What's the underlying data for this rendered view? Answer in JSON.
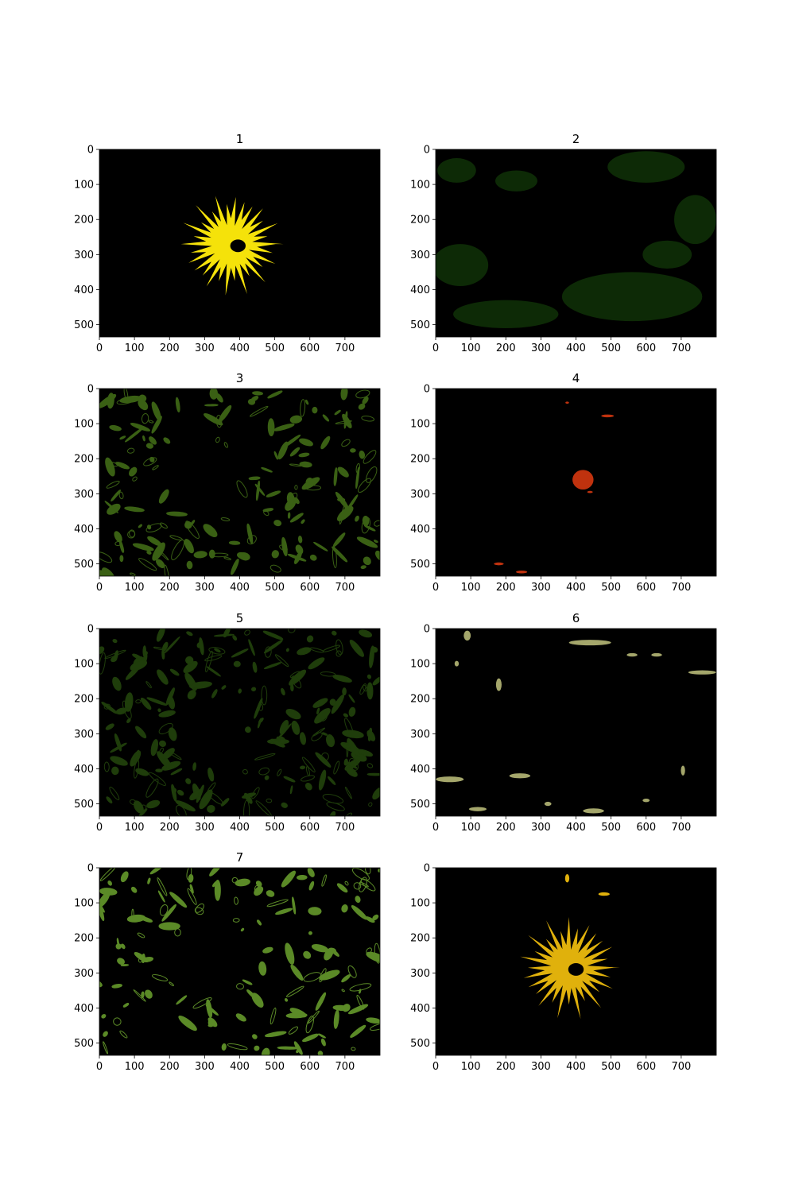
{
  "chart_data": [
    {
      "type": "heatmap",
      "title": "1",
      "content": "segmentation-mask",
      "mask_color": "#f5e20a",
      "background_color": "#000000",
      "xlim": [
        0,
        800
      ],
      "ylim": [
        535,
        0
      ],
      "xticks": [
        0,
        100,
        200,
        300,
        400,
        500,
        600,
        700
      ],
      "yticks": [
        0,
        100,
        200,
        300,
        400,
        500
      ],
      "regions": [
        {
          "shape": "flower",
          "cx": 375,
          "cy": 270,
          "r_outer": 150,
          "r_inner": 75,
          "petals": 30
        }
      ]
    },
    {
      "type": "heatmap",
      "title": "2",
      "content": "segmentation-mask",
      "mask_color": "#0d2a06",
      "background_color": "#000000",
      "xlim": [
        0,
        800
      ],
      "ylim": [
        535,
        0
      ],
      "xticks": [
        0,
        100,
        200,
        300,
        400,
        500,
        600,
        700
      ],
      "yticks": [
        0,
        100,
        200,
        300,
        400,
        500
      ],
      "regions": [
        {
          "shape": "blob",
          "cx": 60,
          "cy": 60,
          "rx": 55,
          "ry": 35
        },
        {
          "shape": "blob",
          "cx": 230,
          "cy": 90,
          "rx": 60,
          "ry": 30
        },
        {
          "shape": "blob",
          "cx": 600,
          "cy": 50,
          "rx": 110,
          "ry": 45
        },
        {
          "shape": "blob",
          "cx": 740,
          "cy": 200,
          "rx": 60,
          "ry": 70
        },
        {
          "shape": "blob",
          "cx": 70,
          "cy": 330,
          "rx": 80,
          "ry": 60
        },
        {
          "shape": "blob",
          "cx": 560,
          "cy": 420,
          "rx": 200,
          "ry": 70
        },
        {
          "shape": "blob",
          "cx": 200,
          "cy": 470,
          "rx": 150,
          "ry": 40
        },
        {
          "shape": "blob",
          "cx": 660,
          "cy": 300,
          "rx": 70,
          "ry": 40
        }
      ]
    },
    {
      "type": "heatmap",
      "title": "3",
      "content": "segmentation-mask",
      "mask_color": "#3a6014",
      "background_color": "#000000",
      "xlim": [
        0,
        800
      ],
      "ylim": [
        535,
        0
      ],
      "xticks": [
        0,
        100,
        200,
        300,
        400,
        500,
        600,
        700
      ],
      "yticks": [
        0,
        100,
        200,
        300,
        400,
        500
      ],
      "regions": [
        {
          "shape": "scatter",
          "seed": 3,
          "count": 180,
          "exclude_cx": 300,
          "exclude_cy": 260,
          "exclude_r": 110
        }
      ]
    },
    {
      "type": "heatmap",
      "title": "4",
      "content": "segmentation-mask",
      "mask_color": "#c0320e",
      "background_color": "#000000",
      "xlim": [
        0,
        800
      ],
      "ylim": [
        535,
        0
      ],
      "xticks": [
        0,
        100,
        200,
        300,
        400,
        500,
        600,
        700
      ],
      "yticks": [
        0,
        100,
        200,
        300,
        400,
        500
      ],
      "regions": [
        {
          "shape": "blob",
          "cx": 420,
          "cy": 260,
          "rx": 30,
          "ry": 28
        },
        {
          "shape": "blob",
          "cx": 490,
          "cy": 78,
          "rx": 18,
          "ry": 4
        },
        {
          "shape": "blob",
          "cx": 375,
          "cy": 40,
          "rx": 5,
          "ry": 3
        },
        {
          "shape": "blob",
          "cx": 180,
          "cy": 500,
          "rx": 14,
          "ry": 4
        },
        {
          "shape": "blob",
          "cx": 245,
          "cy": 523,
          "rx": 16,
          "ry": 4
        },
        {
          "shape": "blob",
          "cx": 440,
          "cy": 295,
          "rx": 8,
          "ry": 3
        }
      ]
    },
    {
      "type": "heatmap",
      "title": "5",
      "content": "segmentation-mask",
      "mask_color": "#1f3d0b",
      "background_color": "#000000",
      "xlim": [
        0,
        800
      ],
      "ylim": [
        535,
        0
      ],
      "xticks": [
        0,
        100,
        200,
        300,
        400,
        500,
        600,
        700
      ],
      "yticks": [
        0,
        100,
        200,
        300,
        400,
        500
      ],
      "regions": [
        {
          "shape": "scatter",
          "seed": 5,
          "count": 230,
          "exclude_cx": 320,
          "exclude_cy": 290,
          "exclude_r": 100
        }
      ]
    },
    {
      "type": "heatmap",
      "title": "6",
      "content": "segmentation-mask",
      "mask_color": "#a4a66b",
      "background_color": "#000000",
      "xlim": [
        0,
        800
      ],
      "ylim": [
        535,
        0
      ],
      "xticks": [
        0,
        100,
        200,
        300,
        400,
        500,
        600,
        700
      ],
      "yticks": [
        0,
        100,
        200,
        300,
        400,
        500
      ],
      "regions": [
        {
          "shape": "blob",
          "cx": 90,
          "cy": 20,
          "rx": 10,
          "ry": 14
        },
        {
          "shape": "blob",
          "cx": 180,
          "cy": 160,
          "rx": 8,
          "ry": 18
        },
        {
          "shape": "blob",
          "cx": 60,
          "cy": 100,
          "rx": 6,
          "ry": 8
        },
        {
          "shape": "blob",
          "cx": 440,
          "cy": 40,
          "rx": 60,
          "ry": 8
        },
        {
          "shape": "blob",
          "cx": 560,
          "cy": 75,
          "rx": 15,
          "ry": 5
        },
        {
          "shape": "blob",
          "cx": 630,
          "cy": 75,
          "rx": 15,
          "ry": 5
        },
        {
          "shape": "blob",
          "cx": 760,
          "cy": 125,
          "rx": 40,
          "ry": 6
        },
        {
          "shape": "blob",
          "cx": 40,
          "cy": 430,
          "rx": 40,
          "ry": 8
        },
        {
          "shape": "blob",
          "cx": 240,
          "cy": 420,
          "rx": 30,
          "ry": 7
        },
        {
          "shape": "blob",
          "cx": 450,
          "cy": 520,
          "rx": 30,
          "ry": 7
        },
        {
          "shape": "blob",
          "cx": 120,
          "cy": 515,
          "rx": 25,
          "ry": 6
        },
        {
          "shape": "blob",
          "cx": 705,
          "cy": 405,
          "rx": 6,
          "ry": 14
        },
        {
          "shape": "blob",
          "cx": 320,
          "cy": 500,
          "rx": 10,
          "ry": 6
        },
        {
          "shape": "blob",
          "cx": 600,
          "cy": 490,
          "rx": 10,
          "ry": 5
        }
      ]
    },
    {
      "type": "heatmap",
      "title": "7",
      "content": "segmentation-mask",
      "mask_color": "#5b8a27",
      "background_color": "#000000",
      "xlim": [
        0,
        800
      ],
      "ylim": [
        535,
        0
      ],
      "xticks": [
        0,
        100,
        200,
        300,
        400,
        500,
        600,
        700
      ],
      "yticks": [
        0,
        100,
        200,
        300,
        400,
        500
      ],
      "regions": [
        {
          "shape": "scatter",
          "seed": 7,
          "count": 160,
          "exclude_cx": 310,
          "exclude_cy": 280,
          "exclude_r": 105
        }
      ]
    },
    {
      "type": "heatmap",
      "title": "",
      "content": "segmentation-mask",
      "mask_color": "#e0b10c",
      "background_color": "#000000",
      "xlim": [
        0,
        800
      ],
      "ylim": [
        535,
        0
      ],
      "xticks": [
        0,
        100,
        200,
        300,
        400,
        500,
        600,
        700
      ],
      "yticks": [
        0,
        100,
        200,
        300,
        400,
        500
      ],
      "regions": [
        {
          "shape": "flower",
          "cx": 380,
          "cy": 285,
          "r_outer": 150,
          "r_inner": 70,
          "petals": 28
        },
        {
          "shape": "blob",
          "cx": 480,
          "cy": 75,
          "rx": 16,
          "ry": 5
        },
        {
          "shape": "blob",
          "cx": 375,
          "cy": 30,
          "rx": 6,
          "ry": 12
        }
      ]
    }
  ]
}
